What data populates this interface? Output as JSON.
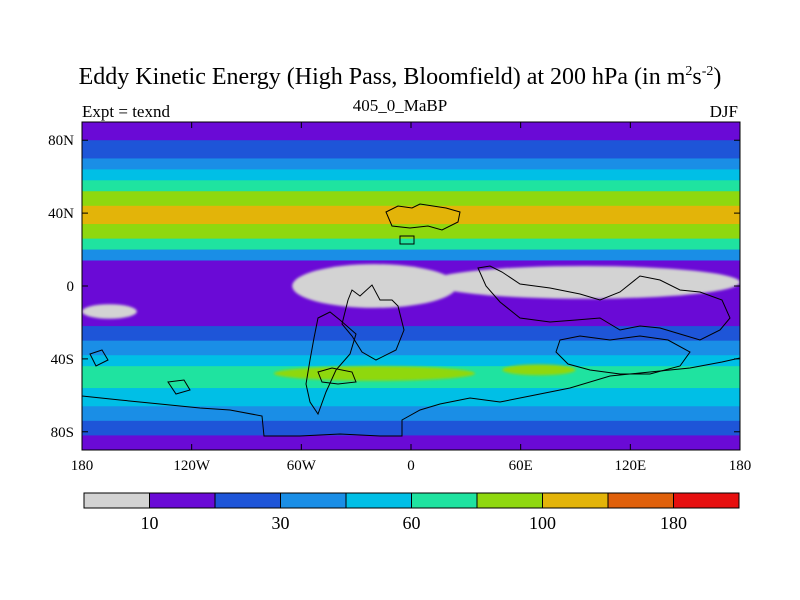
{
  "chart_data": {
    "type": "heatmap",
    "title_main": "Eddy Kinetic Energy (High Pass, Bloomfield) at 200 hPa (in m",
    "title_units_a": "2",
    "title_units_mid": "s",
    "title_units_b": "-2",
    "title_close": ")",
    "subtitle": "405_0_MaBP",
    "left_label": "Expt = texnd",
    "right_label": "DJF",
    "x_ticks": [
      "180",
      "120W",
      "60W",
      "0",
      "60E",
      "120E",
      "180"
    ],
    "x_tick_lon": [
      -180,
      -120,
      -60,
      0,
      60,
      120,
      180
    ],
    "y_ticks": [
      "80N",
      "40N",
      "0",
      "40S",
      "80S"
    ],
    "y_tick_lat": [
      80,
      40,
      0,
      -40,
      -80
    ],
    "xlim": [
      -180,
      180
    ],
    "ylim": [
      -90,
      90
    ],
    "levels": [
      "10",
      "30",
      "60",
      "100",
      "180"
    ],
    "level_boundary_index": [
      1,
      3,
      5,
      7,
      9
    ],
    "colors": [
      "#d3d3d3",
      "#6a0ad6",
      "#1e55d8",
      "#1a8ee6",
      "#00bfe6",
      "#1fe3a0",
      "#8fd80f",
      "#e3b409",
      "#e0600a",
      "#e60f0f"
    ],
    "zonal_band_bin_by_latitude": [
      {
        "lat_from": 90,
        "lat_to": 80,
        "bin": 1
      },
      {
        "lat_from": 80,
        "lat_to": 70,
        "bin": 2
      },
      {
        "lat_from": 70,
        "lat_to": 64,
        "bin": 3
      },
      {
        "lat_from": 64,
        "lat_to": 58,
        "bin": 4
      },
      {
        "lat_from": 58,
        "lat_to": 52,
        "bin": 5
      },
      {
        "lat_from": 52,
        "lat_to": 44,
        "bin": 6
      },
      {
        "lat_from": 44,
        "lat_to": 34,
        "bin": 7
      },
      {
        "lat_from": 34,
        "lat_to": 26,
        "bin": 6
      },
      {
        "lat_from": 26,
        "lat_to": 20,
        "bin": 5
      },
      {
        "lat_from": 20,
        "lat_to": 14,
        "bin": 3
      },
      {
        "lat_from": 14,
        "lat_to": -22,
        "bin": 1
      },
      {
        "lat_from": -22,
        "lat_to": -30,
        "bin": 2
      },
      {
        "lat_from": -30,
        "lat_to": -38,
        "bin": 3
      },
      {
        "lat_from": -38,
        "lat_to": -44,
        "bin": 4
      },
      {
        "lat_from": -44,
        "lat_to": -56,
        "bin": 5
      },
      {
        "lat_from": -56,
        "lat_to": -66,
        "bin": 4
      },
      {
        "lat_from": -66,
        "lat_to": -74,
        "bin": 3
      },
      {
        "lat_from": -74,
        "lat_to": -82,
        "bin": 2
      },
      {
        "lat_from": -82,
        "lat_to": -90,
        "bin": 1
      }
    ],
    "minimum_regions": [
      {
        "lon_center": -20,
        "lat_center": 0,
        "lon_halfwidth": 45,
        "lat_halfwidth": 12,
        "bin": 0
      },
      {
        "lon_center": 95,
        "lat_center": 2,
        "lon_halfwidth": 85,
        "lat_halfwidth": 9,
        "bin": 0
      },
      {
        "lon_center": -165,
        "lat_center": -14,
        "lon_halfwidth": 15,
        "lat_halfwidth": 4,
        "bin": 0
      }
    ],
    "jet_core_regions": [
      {
        "lon_center": -20,
        "lat_center": -48,
        "lon_halfwidth": 55,
        "lat_halfwidth": 4,
        "bin": 6
      },
      {
        "lon_center": 70,
        "lat_center": -46,
        "lon_halfwidth": 20,
        "lat_halfwidth": 3,
        "bin": 6
      }
    ],
    "top_strip_color": "#e8c8e8"
  }
}
